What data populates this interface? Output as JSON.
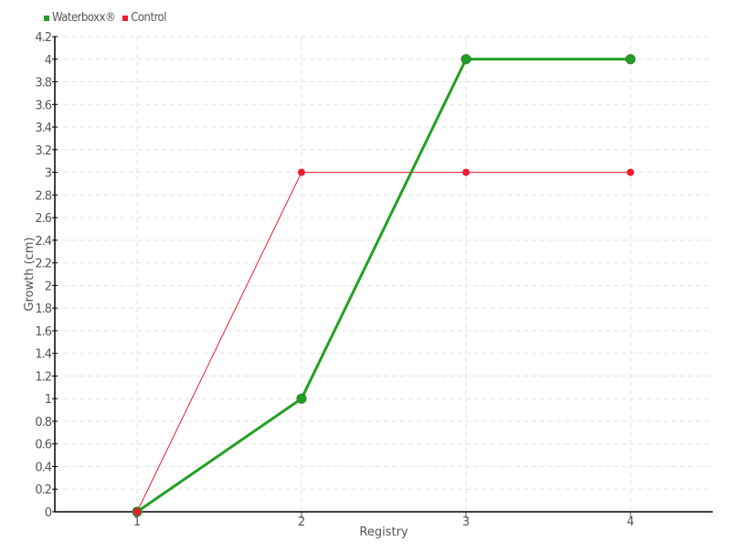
{
  "chart_data": {
    "type": "line",
    "title": "",
    "xlabel": "Registry",
    "ylabel": "Growth (cm)",
    "x": [
      1,
      2,
      3,
      4
    ],
    "xlim": [
      0.5,
      4.5
    ],
    "ylim": [
      0,
      4.2
    ],
    "x_ticks": [
      "1",
      "2",
      "3",
      "4"
    ],
    "y_ticks": [
      "0",
      "0.2",
      "0.4",
      "0.6",
      "0.8",
      "1",
      "1.2",
      "1.4",
      "1.6",
      "1.8",
      "2",
      "2.2",
      "2.4",
      "2.6",
      "2.8",
      "3",
      "3.2",
      "3.4",
      "3.6",
      "3.8",
      "4",
      "4.2"
    ],
    "grid": true,
    "legend_position": "top-left",
    "series": [
      {
        "name": "Waterboxx®",
        "values": [
          0,
          1,
          4,
          4
        ],
        "color": "#22a022"
      },
      {
        "name": "Control",
        "values": [
          0,
          3,
          3,
          3
        ],
        "color": "#ee1c2e"
      }
    ]
  }
}
